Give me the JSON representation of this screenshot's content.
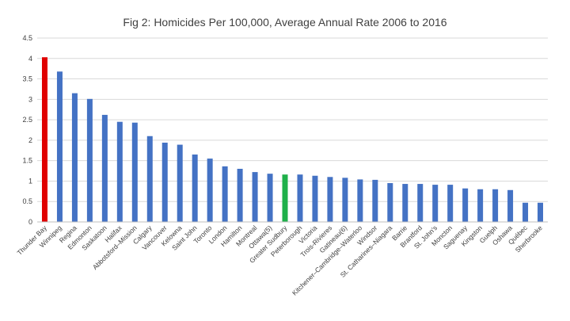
{
  "chart_data": {
    "type": "bar",
    "title": "Fig 2: Homicides Per 100,000, Average Annual Rate 2006 to 2016",
    "xlabel": "",
    "ylabel": "",
    "ylim": [
      0,
      4.5
    ],
    "yticks": [
      "0",
      "0.5",
      "1",
      "1.5",
      "2",
      "2.5",
      "3",
      "3.5",
      "4",
      "4.5"
    ],
    "grid": true,
    "legend": "none",
    "default_color": "#4472c4",
    "highlight_colors": {
      "Thunder Bay": "#e00000",
      "Greater Sudbury": "#1fb04a"
    },
    "categories": [
      "Thunder Bay",
      "Winnipeg",
      "Regina",
      "Edmonton",
      "Saskatoon",
      "Halifax",
      "Abbotsford–Mission",
      "Calgary",
      "Vancouver",
      "Kelowna",
      "Saint John",
      "Toronto",
      "London",
      "Hamilton",
      "Montreal",
      "Ottawa(5)",
      "Greater Sudbury",
      "Peterborough",
      "Victoria",
      "Trois-Rivieres",
      "Gatineau(6)",
      "Kitchener–Cambridge–Waterloo",
      "Windsor",
      "St. Catharines–Niagara",
      "Barrie",
      "Brantford",
      "St. John's",
      "Moncton",
      "Saguenay",
      "Kingston",
      "Guelph",
      "Oshawa",
      "Québec",
      "Sherbrooke"
    ],
    "values": [
      4.03,
      3.68,
      3.15,
      3.01,
      2.62,
      2.45,
      2.43,
      2.1,
      1.94,
      1.89,
      1.65,
      1.55,
      1.36,
      1.3,
      1.22,
      1.18,
      1.16,
      1.16,
      1.13,
      1.1,
      1.08,
      1.04,
      1.03,
      0.95,
      0.93,
      0.93,
      0.91,
      0.91,
      0.82,
      0.8,
      0.8,
      0.78,
      0.47,
      0.47
    ]
  }
}
